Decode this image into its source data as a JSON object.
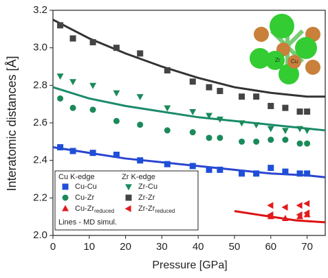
{
  "chart_data": {
    "type": "scatter",
    "xlabel": "Pressure [GPa]",
    "ylabel": "Interatomic distances [Å]",
    "xlim": [
      0,
      75
    ],
    "xticks": [
      0,
      10,
      20,
      30,
      40,
      50,
      60,
      70
    ],
    "ylim": [
      2,
      3.2
    ],
    "yticks": [
      {
        "value": 2,
        "label": "2.0"
      },
      2.2,
      2.4,
      2.6,
      2.8,
      {
        "value": 3,
        "label": "3.0"
      },
      3.2
    ],
    "legend_headers": [
      "Cu K-edge",
      "Zr K-edge"
    ],
    "legend_note": "Lines - MD simul.",
    "inset_labels": [
      "Zr",
      "Cu"
    ],
    "series": [
      {
        "name": "Cu-Cu",
        "color": "#1f4fd8",
        "marker": "square",
        "x": [
          2,
          5.5,
          11,
          17.5,
          24,
          31.5,
          38.5,
          43,
          46,
          52,
          56,
          60,
          64,
          68,
          70
        ],
        "values": [
          2.47,
          2.45,
          2.44,
          2.43,
          2.4,
          2.38,
          2.37,
          2.35,
          2.35,
          2.33,
          2.33,
          2.36,
          2.34,
          2.33,
          2.33
        ]
      },
      {
        "name": "Cu-Zr",
        "color": "#1a8a5a",
        "marker": "circle",
        "x": [
          2,
          5.5,
          11,
          17.5,
          24,
          31.5,
          38.5,
          43,
          46,
          52,
          56,
          60,
          64,
          68,
          70
        ],
        "values": [
          2.73,
          2.68,
          2.67,
          2.61,
          2.59,
          2.56,
          2.55,
          2.52,
          2.52,
          2.5,
          2.5,
          2.51,
          2.51,
          2.49,
          2.49
        ]
      },
      {
        "name": "Cu-Zr",
        "name_sub": "reduced",
        "color": "#e31a1c",
        "marker": "tri-up",
        "x": [
          60,
          64,
          68,
          70
        ],
        "values": [
          2.1,
          2.09,
          2.1,
          2.11
        ]
      },
      {
        "name": "Zr-Cu",
        "color": "#1a8a5a",
        "marker": "tri-down",
        "x": [
          2,
          5.5,
          11,
          17.5,
          24,
          31.5,
          38.5,
          43,
          46,
          52,
          56,
          60,
          64,
          68,
          70
        ],
        "values": [
          2.85,
          2.82,
          2.8,
          2.76,
          2.74,
          2.68,
          2.66,
          2.64,
          2.62,
          2.6,
          2.59,
          2.57,
          2.56,
          2.57,
          2.56
        ]
      },
      {
        "name": "Zr-Zr",
        "color": "#444444",
        "marker": "square",
        "x": [
          2,
          5.5,
          11,
          17.5,
          24,
          31.5,
          38.5,
          43,
          46,
          52,
          56,
          60,
          64,
          68,
          70
        ],
        "values": [
          3.12,
          3.05,
          3.03,
          3,
          2.97,
          2.88,
          2.82,
          2.79,
          2.77,
          2.74,
          2.74,
          2.69,
          2.68,
          2.66,
          2.66
        ]
      },
      {
        "name": "Zr-Zr",
        "name_sub": "reduced",
        "color": "#e31a1c",
        "marker": "tri-left",
        "x": [
          60,
          60,
          64,
          68,
          68,
          70,
          70
        ],
        "values": [
          2.16,
          2.11,
          2.15,
          2.16,
          2.11,
          2.17,
          2.12
        ]
      }
    ],
    "lines": [
      {
        "color": "#333333",
        "x": [
          0,
          10,
          20,
          30,
          40,
          50,
          60,
          70,
          75
        ],
        "values": [
          3.15,
          3.05,
          2.97,
          2.9,
          2.84,
          2.79,
          2.76,
          2.74,
          2.74
        ]
      },
      {
        "color": "#1a8a6a",
        "x": [
          0,
          10,
          20,
          30,
          40,
          50,
          60,
          70,
          75
        ],
        "values": [
          2.79,
          2.73,
          2.69,
          2.66,
          2.63,
          2.61,
          2.59,
          2.57,
          2.56
        ]
      },
      {
        "color": "#2a45d0",
        "x": [
          0,
          10,
          20,
          30,
          40,
          50,
          60,
          70,
          75
        ],
        "values": [
          2.47,
          2.44,
          2.41,
          2.39,
          2.37,
          2.35,
          2.33,
          2.32,
          2.31
        ]
      },
      {
        "color": "#dd1111",
        "x": [
          50,
          60,
          67,
          75
        ],
        "values": [
          2.13,
          2.1,
          2.08,
          2.07
        ]
      }
    ]
  }
}
